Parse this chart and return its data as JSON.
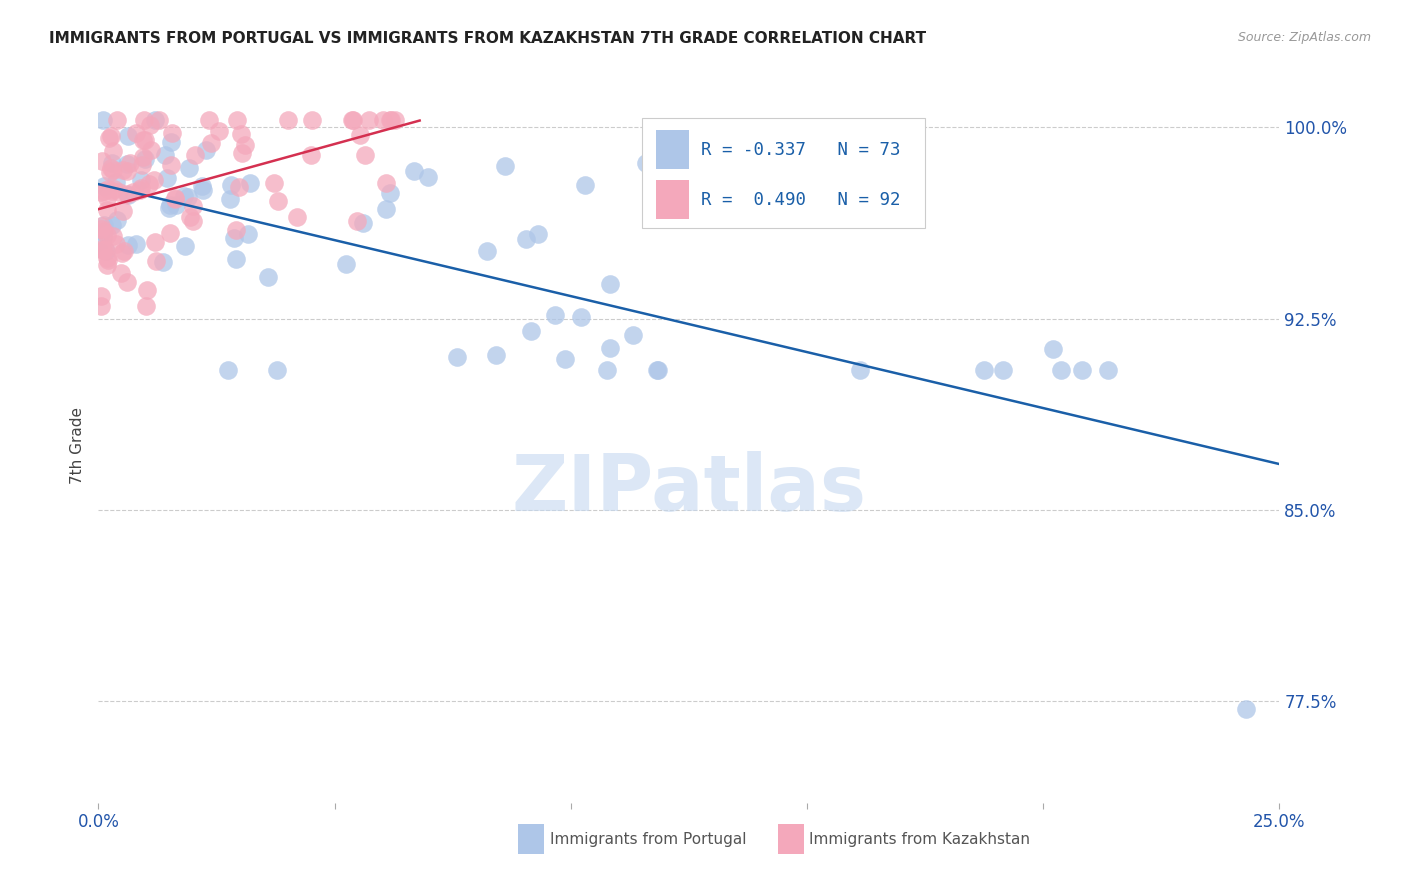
{
  "title": "IMMIGRANTS FROM PORTUGAL VS IMMIGRANTS FROM KAZAKHSTAN 7TH GRADE CORRELATION CHART",
  "source": "Source: ZipAtlas.com",
  "ylabel": "7th Grade",
  "y_ticks": [
    0.775,
    0.85,
    0.925,
    1.0
  ],
  "y_tick_labels": [
    "77.5%",
    "85.0%",
    "92.5%",
    "100.0%"
  ],
  "xlim": [
    0.0,
    0.25
  ],
  "ylim": [
    0.735,
    1.015
  ],
  "blue_color": "#aec6e8",
  "pink_color": "#f4a8bb",
  "line_blue": "#1a5fa8",
  "line_pink": "#d43050",
  "tick_color": "#2255aa",
  "watermark_color": "#c5d8f0",
  "grid_color": "#cccccc",
  "title_color": "#222222",
  "source_color": "#999999",
  "legend_text_color": "#1a5fa8",
  "bottom_legend_text_color": "#555555"
}
